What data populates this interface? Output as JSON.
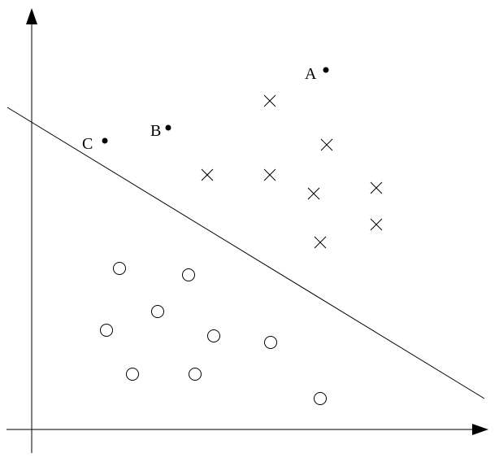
{
  "labels": {
    "a": "A",
    "b": "B",
    "c": "C"
  },
  "colors": {
    "ink": "#000000",
    "background": "#ffffff"
  },
  "marker_kinds": [
    "cross",
    "circle",
    "dot"
  ]
}
